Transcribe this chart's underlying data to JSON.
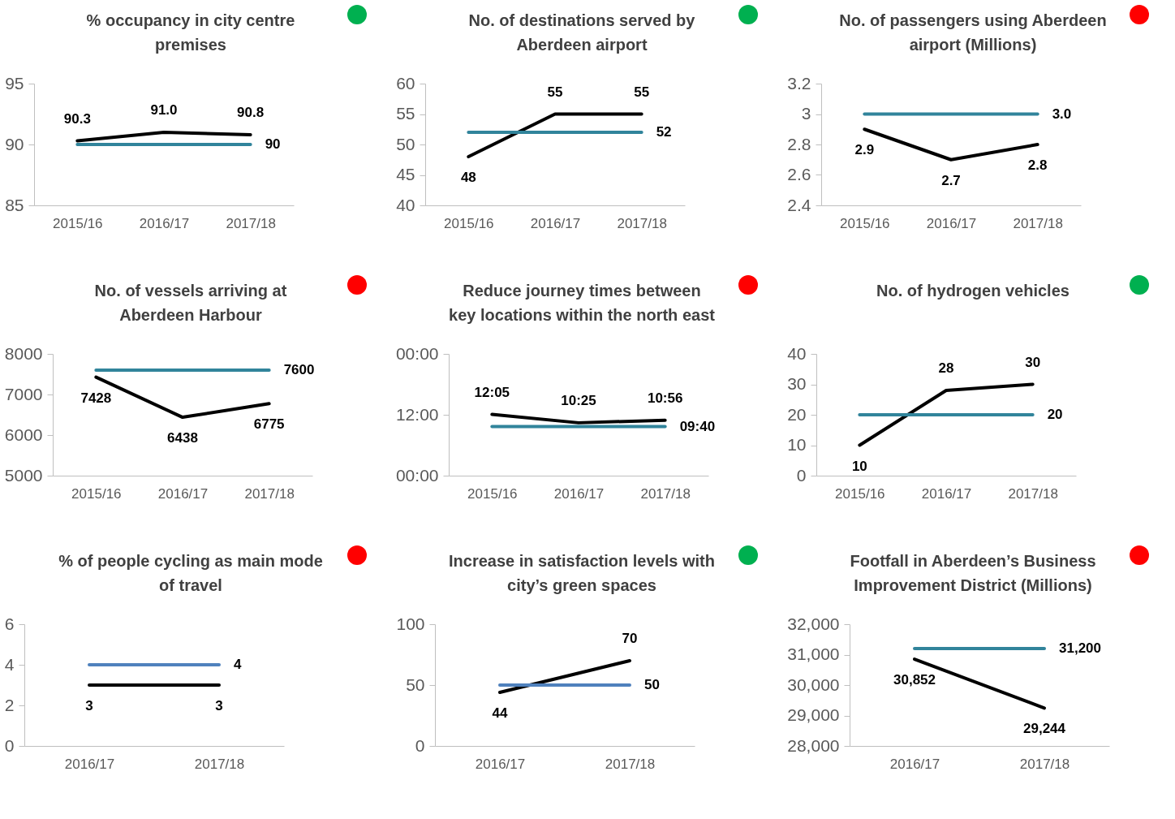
{
  "chart_data": [
    {
      "type": "line",
      "title": "% occupancy in city centre premises",
      "categories": [
        "2015/16",
        "2016/17",
        "2017/18"
      ],
      "ylim": [
        85,
        95
      ],
      "yticks": [
        85,
        90,
        95
      ],
      "series": [
        {
          "color": "#000000",
          "values": [
            90.3,
            91.0,
            90.8
          ],
          "value_labels": [
            "90.3",
            "91.0",
            "90.8"
          ]
        },
        {
          "color": "#31849b",
          "values": [
            90,
            90,
            90
          ],
          "value_labels": [
            null,
            null,
            "90"
          ]
        }
      ]
    },
    {
      "type": "line",
      "title": "No. of destinations served by Aberdeen airport",
      "categories": [
        "2015/16",
        "2016/17",
        "2017/18"
      ],
      "ylim": [
        40,
        60
      ],
      "yticks": [
        40,
        45,
        50,
        55,
        60
      ],
      "series": [
        {
          "color": "#000000",
          "values": [
            48,
            55,
            55
          ],
          "value_labels": [
            "48",
            "55",
            "55"
          ]
        },
        {
          "color": "#31849b",
          "values": [
            52,
            52,
            52
          ],
          "value_labels": [
            null,
            null,
            "52"
          ]
        }
      ]
    },
    {
      "type": "line",
      "title": "No. of passengers using Aberdeen airport (Millions)",
      "categories": [
        "2015/16",
        "2016/17",
        "2017/18"
      ],
      "ylim": [
        2.4,
        3.2
      ],
      "yticks": [
        2.4,
        2.6,
        2.8,
        3,
        3.2
      ],
      "series": [
        {
          "color": "#000000",
          "values": [
            2.9,
            2.7,
            2.8
          ],
          "value_labels": [
            "2.9",
            "2.7",
            "2.8"
          ]
        },
        {
          "color": "#31849b",
          "values": [
            3.0,
            3.0,
            3.0
          ],
          "value_labels": [
            null,
            null,
            "3.0"
          ]
        }
      ]
    },
    {
      "type": "line",
      "title": "No. of vessels arriving at Aberdeen Harbour",
      "categories": [
        "2015/16",
        "2016/17",
        "2017/18"
      ],
      "ylim": [
        5000,
        8000
      ],
      "yticks": [
        5000,
        6000,
        7000,
        8000
      ],
      "series": [
        {
          "color": "#000000",
          "values": [
            7428,
            6438,
            6775
          ],
          "value_labels": [
            "7428",
            "6438",
            "6775"
          ]
        },
        {
          "color": "#31849b",
          "values": [
            7600,
            7600,
            7600
          ],
          "value_labels": [
            null,
            null,
            "7600"
          ]
        }
      ]
    },
    {
      "type": "line",
      "title": "Reduce journey times between key locations within the north east",
      "categories": [
        "2015/16",
        "2016/17",
        "2017/18"
      ],
      "ylim": [
        0,
        24
      ],
      "yticks": [
        {
          "value": 0,
          "label": "00:00"
        },
        {
          "value": 12,
          "label": "12:00"
        },
        {
          "value": 24,
          "label": "00:00"
        }
      ],
      "series": [
        {
          "color": "#000000",
          "values": [
            12.08,
            10.42,
            10.93
          ],
          "value_labels": [
            "12:05",
            "10:25",
            "10:56"
          ]
        },
        {
          "color": "#31849b",
          "values": [
            9.67,
            9.67,
            9.67
          ],
          "value_labels": [
            null,
            null,
            "09:40"
          ]
        }
      ]
    },
    {
      "type": "line",
      "title": "No. of hydrogen vehicles",
      "categories": [
        "2015/16",
        "2016/17",
        "2017/18"
      ],
      "ylim": [
        0,
        40
      ],
      "yticks": [
        0,
        10,
        20,
        30,
        40
      ],
      "series": [
        {
          "color": "#000000",
          "values": [
            10,
            28,
            30
          ],
          "value_labels": [
            "10",
            "28",
            "30"
          ]
        },
        {
          "color": "#31849b",
          "values": [
            20,
            20,
            20
          ],
          "value_labels": [
            null,
            null,
            "20"
          ]
        }
      ]
    },
    {
      "type": "line",
      "title": "% of people cycling as main mode of travel",
      "categories": [
        "2016/17",
        "2017/18"
      ],
      "ylim": [
        0,
        6
      ],
      "yticks": [
        0,
        2,
        4,
        6
      ],
      "series": [
        {
          "color": "#000000",
          "values": [
            3,
            3
          ],
          "value_labels": [
            "3",
            "3"
          ]
        },
        {
          "color": "#4f81bd",
          "values": [
            4,
            4
          ],
          "value_labels": [
            null,
            "4"
          ]
        }
      ]
    },
    {
      "type": "line",
      "title": "Increase in satisfaction levels with city’s green spaces",
      "categories": [
        "2016/17",
        "2017/18"
      ],
      "ylim": [
        0,
        100
      ],
      "yticks": [
        0,
        50,
        100
      ],
      "series": [
        {
          "color": "#000000",
          "values": [
            44,
            70
          ],
          "value_labels": [
            "44",
            "70"
          ]
        },
        {
          "color": "#4f81bd",
          "values": [
            50,
            50
          ],
          "value_labels": [
            null,
            "50"
          ]
        }
      ]
    },
    {
      "type": "line",
      "title": "Footfall in Aberdeen’s Business Improvement District (Millions)",
      "categories": [
        "2016/17",
        "2017/18"
      ],
      "ylim": [
        28000,
        32000
      ],
      "yticks": [
        {
          "value": 28000,
          "label": "28,000"
        },
        {
          "value": 29000,
          "label": "29,000"
        },
        {
          "value": 30000,
          "label": "30,000"
        },
        {
          "value": 31000,
          "label": "31,000"
        },
        {
          "value": 32000,
          "label": "32,000"
        }
      ],
      "series": [
        {
          "color": "#000000",
          "values": [
            30852,
            29244
          ],
          "value_labels": [
            "30,852",
            "29,244"
          ]
        },
        {
          "color": "#31849b",
          "values": [
            31200,
            31200
          ],
          "value_labels": [
            null,
            "31,200"
          ]
        }
      ]
    }
  ]
}
